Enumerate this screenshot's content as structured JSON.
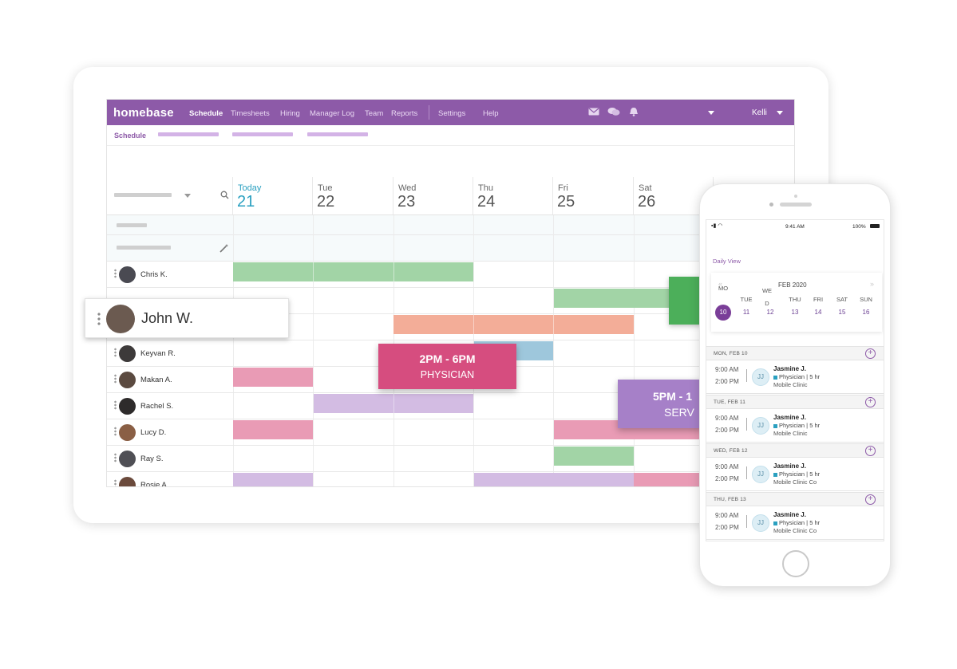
{
  "topbar": {
    "logo": "homebase",
    "nav": [
      "Schedule",
      "Timesheets",
      "Hiring",
      "Manager Log",
      "Team",
      "Reports",
      "Settings",
      "Help"
    ],
    "active": "Schedule",
    "user": "Kelli"
  },
  "subnav": {
    "label": "Schedule"
  },
  "days": [
    {
      "name": "Today",
      "num": "21"
    },
    {
      "name": "Tue",
      "num": "22"
    },
    {
      "name": "Wed",
      "num": "23"
    },
    {
      "name": "Thu",
      "num": "24"
    },
    {
      "name": "Fri",
      "num": "25"
    },
    {
      "name": "Sat",
      "num": "26"
    }
  ],
  "employees": [
    "Chris K.",
    "",
    "",
    "Keyvan R.",
    "Makan A.",
    "Rachel S.",
    "Lucy D.",
    "Ray S.",
    "Rosie A."
  ],
  "dragged_employee": "John W.",
  "popups": [
    {
      "time": "2PM - 6PM",
      "role": "PHYSICIAN"
    },
    {
      "time": "5PM - 1",
      "role": "SERV"
    }
  ],
  "colors": {
    "brand": "#8d5aa8",
    "green": "#a2d4a6",
    "salmon": "#f3ad98",
    "blue": "#9ec7dc",
    "pink": "#e99bb5",
    "lavender": "#d3bce3",
    "physician_popup": "#d64d7f",
    "serv_popup": "#a680c8",
    "dark_green": "#4caf5a"
  },
  "phone": {
    "time": "9:41 AM",
    "battery": "100%",
    "daily_view": "Daily View",
    "month": "FEB 2020",
    "dow": [
      "MO",
      "TUE",
      "WE D",
      "THU",
      "FRI",
      "SAT",
      "SUN"
    ],
    "dates": [
      "10",
      "11",
      "12",
      "13",
      "14",
      "15",
      "16"
    ],
    "days": [
      {
        "label": "MON, FEB 10",
        "start": "9:00 AM",
        "end": "2:00 PM",
        "initials": "JJ",
        "name": "Jasmine J.",
        "role": "Physician | 5 hr",
        "location": "Mobile Clinic"
      },
      {
        "label": "TUE, FEB 11",
        "start": "9:00 AM",
        "end": "2:00 PM",
        "initials": "JJ",
        "name": "Jasmine J.",
        "role": "Physician | 5 hr",
        "location": "Mobile Clinic"
      },
      {
        "label": "WED, FEB 12",
        "start": "9:00 AM",
        "end": "2:00 PM",
        "initials": "JJ",
        "name": "Jasmine J.",
        "role": "Physician | 5 hr",
        "location": "Mobile Clinic Co"
      },
      {
        "label": "THU, FEB 13",
        "start": "9:00 AM",
        "end": "2:00 PM",
        "initials": "JJ",
        "name": "Jasmine J.",
        "role": "Physician | 5 hr",
        "location": "Mobile Clinic Co"
      }
    ]
  }
}
